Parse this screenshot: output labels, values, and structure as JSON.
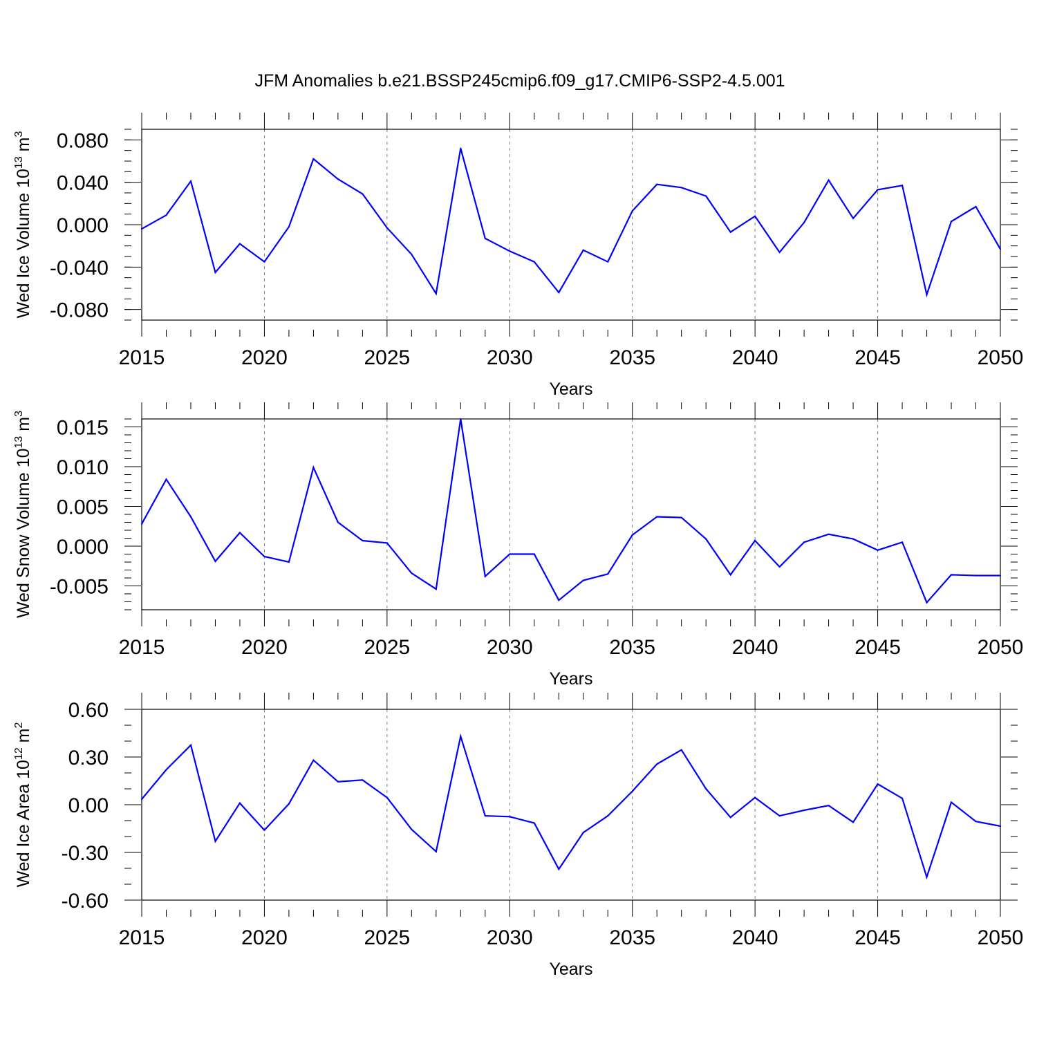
{
  "title": "JFM Anomalies b.e21.BSSP245cmip6.f09_g17.CMIP6-SSP2-4.5.001",
  "colors": {
    "line": "#0000ff",
    "axis": "#000000",
    "grid": "#777777"
  },
  "chart_data": [
    {
      "type": "line",
      "ylabel": "Wed Ice Volume 10",
      "ylabel_exp1": "13",
      "ylabel_unit": " m",
      "ylabel_exp2": "3",
      "xlabel": "Years",
      "xlim": [
        2015,
        2050
      ],
      "ylim": [
        -0.09,
        0.09
      ],
      "x_ticks": [
        "2015",
        "2020",
        "2025",
        "2030",
        "2035",
        "2040",
        "2045",
        "2050"
      ],
      "y_ticks": [
        {
          "value": -0.08,
          "label": "-0.080"
        },
        {
          "value": -0.04,
          "label": "-0.040"
        },
        {
          "value": 0.0,
          "label": "0.000"
        },
        {
          "value": 0.04,
          "label": "0.040"
        },
        {
          "value": 0.08,
          "label": "0.080"
        }
      ],
      "y_minor_step": 0.01,
      "x": [
        2015,
        2016,
        2017,
        2018,
        2019,
        2020,
        2021,
        2022,
        2023,
        2024,
        2025,
        2026,
        2027,
        2028,
        2029,
        2030,
        2031,
        2032,
        2033,
        2034,
        2035,
        2036,
        2037,
        2038,
        2039,
        2040,
        2041,
        2042,
        2043,
        2044,
        2045,
        2046,
        2047,
        2048,
        2049,
        2050
      ],
      "values": [
        -0.004,
        0.009,
        0.041,
        -0.045,
        -0.018,
        -0.035,
        -0.002,
        0.062,
        0.043,
        0.029,
        -0.003,
        -0.028,
        -0.065,
        0.072,
        -0.013,
        -0.025,
        -0.035,
        -0.064,
        -0.024,
        -0.035,
        0.013,
        0.038,
        0.035,
        0.027,
        -0.007,
        0.008,
        -0.026,
        0.002,
        0.042,
        0.006,
        0.033,
        0.037,
        -0.066,
        0.003,
        0.017,
        -0.023
      ]
    },
    {
      "type": "line",
      "ylabel": "Wed Snow Volume 10",
      "ylabel_exp1": "13",
      "ylabel_unit": " m",
      "ylabel_exp2": "3",
      "xlabel": "Years",
      "xlim": [
        2015,
        2050
      ],
      "ylim": [
        -0.008,
        0.016
      ],
      "x_ticks": [
        "2015",
        "2020",
        "2025",
        "2030",
        "2035",
        "2040",
        "2045",
        "2050"
      ],
      "y_ticks": [
        {
          "value": -0.005,
          "label": "-0.005"
        },
        {
          "value": 0.0,
          "label": "0.000"
        },
        {
          "value": 0.005,
          "label": "0.005"
        },
        {
          "value": 0.01,
          "label": "0.010"
        },
        {
          "value": 0.015,
          "label": "0.015"
        }
      ],
      "y_minor_step": 0.001,
      "x": [
        2015,
        2016,
        2017,
        2018,
        2019,
        2020,
        2021,
        2022,
        2023,
        2024,
        2025,
        2026,
        2027,
        2028,
        2029,
        2030,
        2031,
        2032,
        2033,
        2034,
        2035,
        2036,
        2037,
        2038,
        2039,
        2040,
        2041,
        2042,
        2043,
        2044,
        2045,
        2046,
        2047,
        2048,
        2049,
        2050
      ],
      "values": [
        0.0028,
        0.0084,
        0.0037,
        -0.0019,
        0.0017,
        -0.0013,
        -0.002,
        0.0099,
        0.003,
        0.0007,
        0.0004,
        -0.0034,
        -0.0054,
        0.016,
        -0.0038,
        -0.001,
        -0.001,
        -0.0068,
        -0.0043,
        -0.0035,
        0.0014,
        0.0037,
        0.0036,
        0.0009,
        -0.0036,
        0.0007,
        -0.0026,
        0.0005,
        0.0015,
        0.0009,
        -0.0005,
        0.0005,
        -0.0071,
        -0.0036,
        -0.0037,
        -0.0037
      ]
    },
    {
      "type": "line",
      "ylabel": "Wed Ice Area 10",
      "ylabel_exp1": "12",
      "ylabel_unit": " m",
      "ylabel_exp2": "2",
      "xlabel": "Years",
      "xlim": [
        2015,
        2050
      ],
      "ylim": [
        -0.6,
        0.6
      ],
      "x_ticks": [
        "2015",
        "2020",
        "2025",
        "2030",
        "2035",
        "2040",
        "2045",
        "2050"
      ],
      "y_ticks": [
        {
          "value": -0.6,
          "label": "-0.60"
        },
        {
          "value": -0.3,
          "label": "-0.30"
        },
        {
          "value": 0.0,
          "label": "0.00"
        },
        {
          "value": 0.3,
          "label": "0.30"
        },
        {
          "value": 0.6,
          "label": "0.60"
        }
      ],
      "y_minor_step": 0.1,
      "x": [
        2015,
        2016,
        2017,
        2018,
        2019,
        2020,
        2021,
        2022,
        2023,
        2024,
        2025,
        2026,
        2027,
        2028,
        2029,
        2030,
        2031,
        2032,
        2033,
        2034,
        2035,
        2036,
        2037,
        2038,
        2039,
        2040,
        2041,
        2042,
        2043,
        2044,
        2045,
        2046,
        2047,
        2048,
        2049,
        2050
      ],
      "values": [
        0.035,
        0.22,
        0.375,
        -0.23,
        0.01,
        -0.16,
        0.005,
        0.28,
        0.145,
        0.155,
        0.045,
        -0.155,
        -0.295,
        0.43,
        -0.07,
        -0.075,
        -0.115,
        -0.405,
        -0.175,
        -0.07,
        0.085,
        0.255,
        0.345,
        0.1,
        -0.08,
        0.045,
        -0.07,
        -0.035,
        -0.005,
        -0.11,
        0.13,
        0.04,
        -0.455,
        0.015,
        -0.105,
        -0.135
      ]
    }
  ]
}
